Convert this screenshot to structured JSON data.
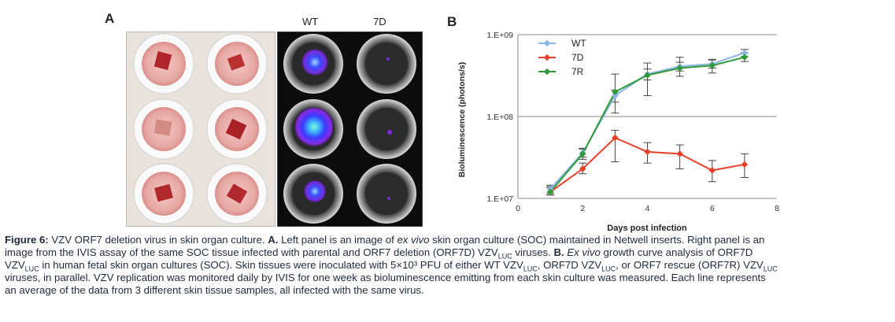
{
  "panel_a": {
    "letter": "A",
    "col_wt": "WT",
    "col_7d": "7D"
  },
  "panel_b": {
    "letter": "B"
  },
  "chart_data": {
    "type": "line",
    "title": "",
    "xlabel": "Days post infection",
    "ylabel": "Bioluminescence (photons/s)",
    "yscale": "log",
    "xlim": [
      0,
      8
    ],
    "ylim": [
      10000000,
      1000000000
    ],
    "xticks": [
      "0",
      "2",
      "4",
      "6",
      "8"
    ],
    "yticks": [
      "1.E+07",
      "1.E+08",
      "1.E+09"
    ],
    "grid": "horizontal at 1.E+08 and 1.E+09",
    "legend": "top-left",
    "x": [
      1,
      2,
      3,
      4,
      5,
      6,
      7
    ],
    "series": [
      {
        "name": "WT",
        "color": "#8eb4e3",
        "values": [
          13000000,
          36000000,
          180000000,
          330000000,
          410000000,
          440000000,
          600000000
        ],
        "err_low": [
          11500000,
          32000000,
          150000000,
          280000000,
          360000000,
          390000000,
          540000000
        ],
        "err_high": [
          14500000,
          40000000,
          210000000,
          380000000,
          460000000,
          490000000,
          660000000
        ]
      },
      {
        "name": "7D",
        "color": "#e8402a",
        "values": [
          12000000,
          23000000,
          55000000,
          37000000,
          35000000,
          22000000,
          26000000
        ],
        "err_low": [
          11000000,
          20000000,
          28000000,
          27000000,
          23000000,
          16000000,
          18000000
        ],
        "err_high": [
          13500000,
          27000000,
          68000000,
          48000000,
          45000000,
          29000000,
          35000000
        ]
      },
      {
        "name": "7R",
        "color": "#2e9a3a",
        "values": [
          12000000,
          35000000,
          200000000,
          320000000,
          390000000,
          420000000,
          530000000
        ],
        "err_low": [
          11000000,
          30000000,
          110000000,
          180000000,
          310000000,
          340000000,
          470000000
        ],
        "err_high": [
          14000000,
          41000000,
          330000000,
          450000000,
          530000000,
          500000000,
          600000000
        ]
      }
    ]
  },
  "caption": {
    "fig_label": "Figure 6:",
    "t1": " VZV ORF7 deletion virus in skin organ culture. ",
    "a_label": "A.",
    "t2": " Left panel is an image of ",
    "ex_vivo_1": "ex vivo",
    "t3": " skin organ culture (SOC) maintained in Netwell inserts. Right panel is an",
    "t4": "image from the IVIS assay of the same SOC tissue infected with parental and ORF7 deletion (ORF7D) VZV",
    "sub_luc_1": "LUC",
    "t5": " viruses. ",
    "b_label": "B.",
    "t6": " ",
    "ex_vivo_2": "Ex vivo",
    "t7": " growth curve analysis of ORF7D",
    "t8": "VZV",
    "sub_luc_2": "LUC",
    "t9": " in human fetal skin organ cultures (SOC). Skin tissues were inoculated with 5×10³ PFU of either WT VZV",
    "sub_luc_3": "LUC",
    "t10": ", ORF7D VZV",
    "sub_luc_4": "LUC",
    "t11": ", or ORF7 rescue (ORF7R) VZV",
    "sub_luc_5": "LUC",
    "t12": "viruses, in parallel. VZV replication was monitored daily by IVIS for one week as bioluminescence emitting from each skin culture was measured. Each line represents",
    "t13": "an average of the data from 3 different skin tissue samples, all infected with the same virus."
  }
}
